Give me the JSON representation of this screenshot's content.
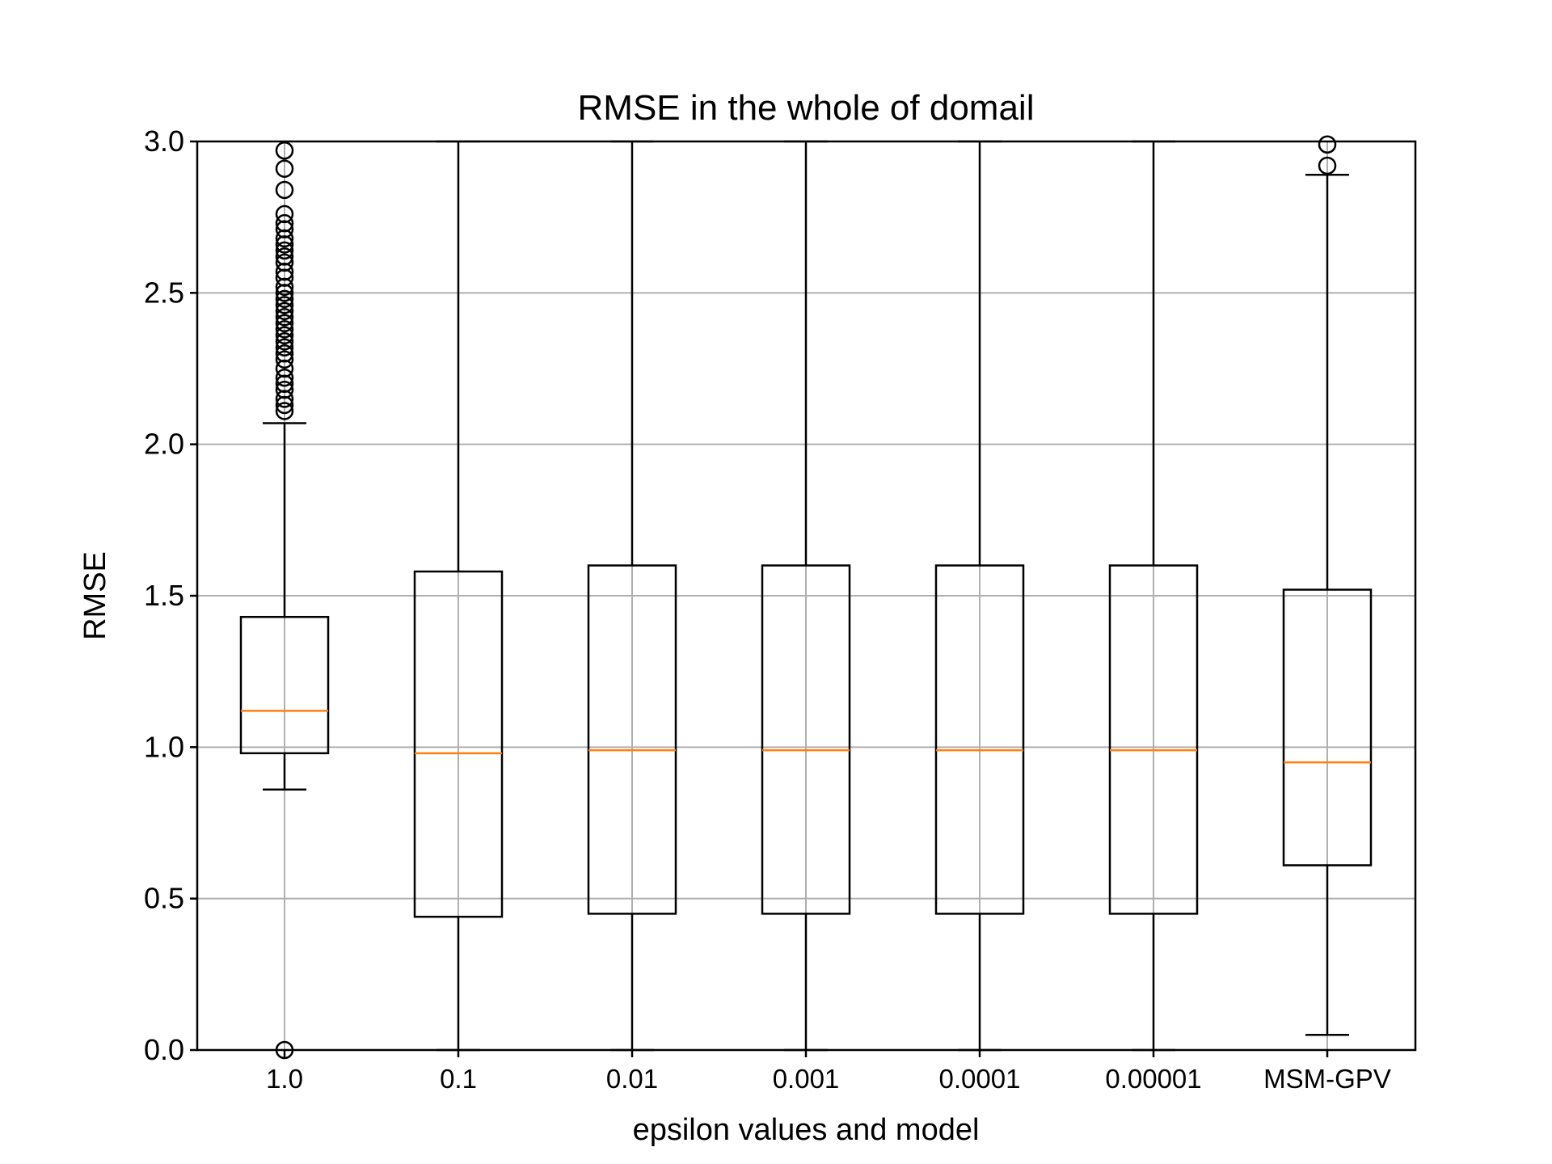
{
  "chart_data": {
    "type": "boxplot",
    "title": "RMSE in the whole of domail",
    "xlabel": "epsilon values and model",
    "ylabel": "RMSE",
    "ylim": [
      0.0,
      3.0
    ],
    "yticks": [
      "0.0",
      "0.5",
      "1.0",
      "1.5",
      "2.0",
      "2.5",
      "3.0"
    ],
    "categories": [
      "1.0",
      "0.1",
      "0.01",
      "0.001",
      "0.0001",
      "0.00001",
      "MSM-GPV"
    ],
    "grid": true,
    "colors": {
      "box": "#000000",
      "median": "#ff7f0e",
      "grid": "#b0b0b0"
    },
    "boxes": [
      {
        "label": "1.0",
        "whislo": 0.86,
        "q1": 0.98,
        "med": 1.12,
        "q3": 1.43,
        "whishi": 2.07,
        "fliers": [
          0.0,
          2.11,
          2.13,
          2.15,
          2.18,
          2.2,
          2.22,
          2.25,
          2.28,
          2.3,
          2.32,
          2.34,
          2.36,
          2.38,
          2.4,
          2.42,
          2.44,
          2.46,
          2.48,
          2.5,
          2.52,
          2.55,
          2.57,
          2.6,
          2.62,
          2.64,
          2.66,
          2.68,
          2.71,
          2.73,
          2.76,
          2.84,
          2.91,
          2.97
        ]
      },
      {
        "label": "0.1",
        "whislo": 0.0,
        "q1": 0.44,
        "med": 0.98,
        "q3": 1.58,
        "whishi": 3.0,
        "fliers": []
      },
      {
        "label": "0.01",
        "whislo": 0.0,
        "q1": 0.45,
        "med": 0.99,
        "q3": 1.6,
        "whishi": 3.0,
        "fliers": []
      },
      {
        "label": "0.001",
        "whislo": 0.0,
        "q1": 0.45,
        "med": 0.99,
        "q3": 1.6,
        "whishi": 3.0,
        "fliers": []
      },
      {
        "label": "0.0001",
        "whislo": 0.0,
        "q1": 0.45,
        "med": 0.99,
        "q3": 1.6,
        "whishi": 3.0,
        "fliers": []
      },
      {
        "label": "0.00001",
        "whislo": 0.0,
        "q1": 0.45,
        "med": 0.99,
        "q3": 1.6,
        "whishi": 3.0,
        "fliers": []
      },
      {
        "label": "MSM-GPV",
        "whislo": 0.05,
        "q1": 0.61,
        "med": 0.95,
        "q3": 1.52,
        "whishi": 2.89,
        "fliers": [
          2.92,
          2.99
        ]
      }
    ]
  }
}
